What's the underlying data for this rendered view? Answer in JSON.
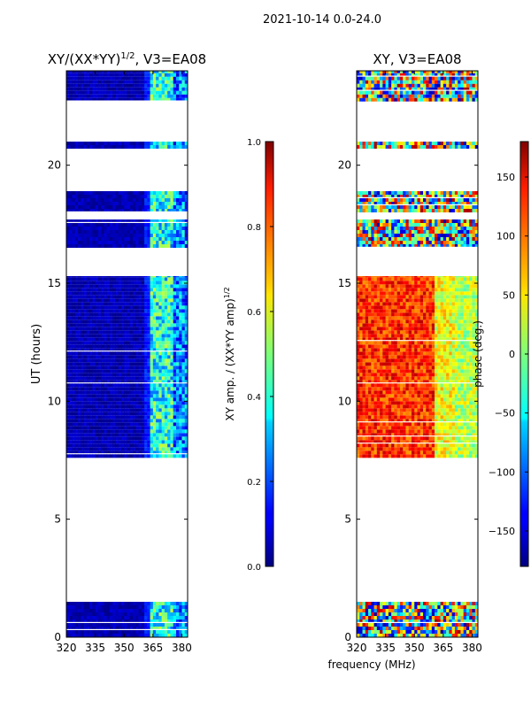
{
  "figure_title": "2021-10-14 0.0-24.0",
  "xlabel": "frequency (MHz)",
  "chart_data": [
    {
      "type": "heatmap",
      "id": "amp",
      "title_main": "XY/(XX*YY)",
      "title_sup": "1/2",
      "title_tail": ", V3=EA08",
      "xlabel": "",
      "ylabel": "UT (hours)",
      "xlim": [
        320,
        383
      ],
      "ylim": [
        0,
        24
      ],
      "xticks": [
        320,
        335,
        350,
        365,
        380
      ],
      "yticks": [
        0,
        5,
        10,
        15,
        20
      ],
      "colorbar": {
        "label_main": "XY amp. / (XX*YY amp)",
        "label_sup": "1/2",
        "range": [
          0.0,
          1.0
        ],
        "ticks": [
          "0.0",
          "0.2",
          "0.4",
          "0.6",
          "0.8",
          "1.0"
        ],
        "tick_values": [
          0.0,
          0.2,
          0.4,
          0.6,
          0.8,
          1.0
        ]
      },
      "data_blocks_ut": [
        [
          0.0,
          1.5
        ],
        [
          7.6,
          15.3
        ],
        [
          16.5,
          17.7
        ],
        [
          18.0,
          18.9
        ],
        [
          20.7,
          21.0
        ],
        [
          22.7,
          24.0
        ]
      ],
      "frequency_structure": [
        {
          "range_mhz": [
            320,
            360
          ],
          "typical_value": 0.05
        },
        {
          "range_mhz": [
            360,
            363
          ],
          "typical_value": 0.15
        },
        {
          "range_mhz": [
            363,
            375
          ],
          "typical_value": 0.4
        },
        {
          "range_mhz": [
            375,
            383
          ],
          "typical_value": 0.25
        }
      ]
    },
    {
      "type": "heatmap",
      "id": "phase",
      "title_main": "XY, V3=EA08",
      "title_sup": "",
      "title_tail": "",
      "xlabel": "",
      "ylabel": "",
      "xlim": [
        320,
        383
      ],
      "ylim": [
        0,
        24
      ],
      "xticks": [
        320,
        335,
        350,
        365,
        380
      ],
      "yticks": [
        0,
        5,
        10,
        15,
        20
      ],
      "colorbar": {
        "label_main": "phase (deg.)",
        "label_sup": "",
        "range": [
          -180,
          180
        ],
        "ticks": [
          "−150",
          "−100",
          "−50",
          "0",
          "50",
          "100",
          "150"
        ],
        "tick_values": [
          -150,
          -100,
          -50,
          0,
          50,
          100,
          150
        ]
      },
      "data_blocks_ut": [
        [
          0.0,
          1.5
        ],
        [
          7.6,
          15.3
        ],
        [
          16.5,
          17.7
        ],
        [
          18.0,
          18.9
        ],
        [
          20.7,
          21.0
        ],
        [
          22.7,
          24.0
        ]
      ],
      "frequency_structure": [
        {
          "range_mhz": [
            320,
            360
          ],
          "typical_value": 120
        },
        {
          "range_mhz": [
            360,
            370
          ],
          "typical_value": 40
        },
        {
          "range_mhz": [
            370,
            383
          ],
          "typical_value": 20
        }
      ]
    }
  ]
}
